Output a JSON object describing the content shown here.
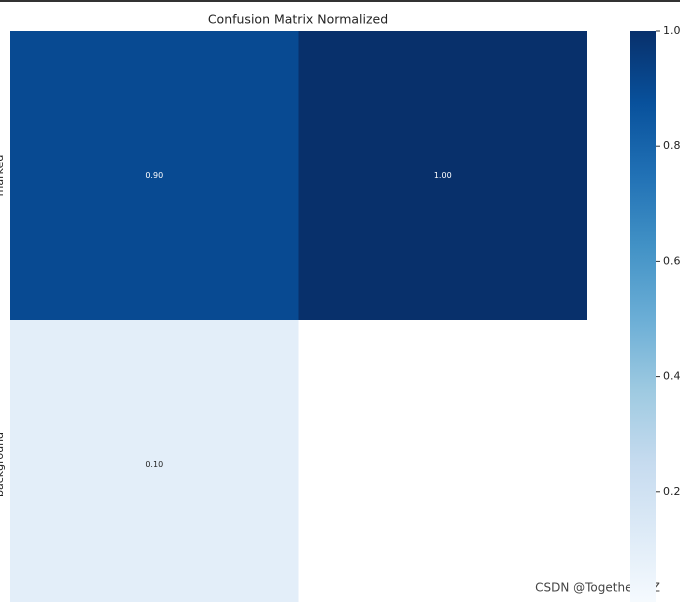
{
  "chart_data": {
    "type": "heatmap",
    "title": "Confusion Matrix Normalized",
    "y_categories": [
      "marked",
      "background"
    ],
    "values": [
      [
        0.9,
        1.0
      ],
      [
        0.1,
        null
      ]
    ],
    "value_labels": [
      [
        "0.90",
        "1.00"
      ],
      [
        "0.10",
        null
      ]
    ],
    "colorscale": [
      "#f7fbff",
      "#deebf7",
      "#c6dbef",
      "#9ecae1",
      "#6baed6",
      "#4292c6",
      "#2171b5",
      "#08519c",
      "#08306b"
    ],
    "clim": [
      0,
      1
    ],
    "cticks": [
      {
        "value": 0.2,
        "label": "0.2"
      },
      {
        "value": 0.4,
        "label": "0.4"
      },
      {
        "value": 0.6,
        "label": "0.6"
      },
      {
        "value": 0.8,
        "label": "0.8"
      },
      {
        "value": 1.0,
        "label": "1.0"
      }
    ],
    "watermark": "CSDN @Together_CZ"
  }
}
